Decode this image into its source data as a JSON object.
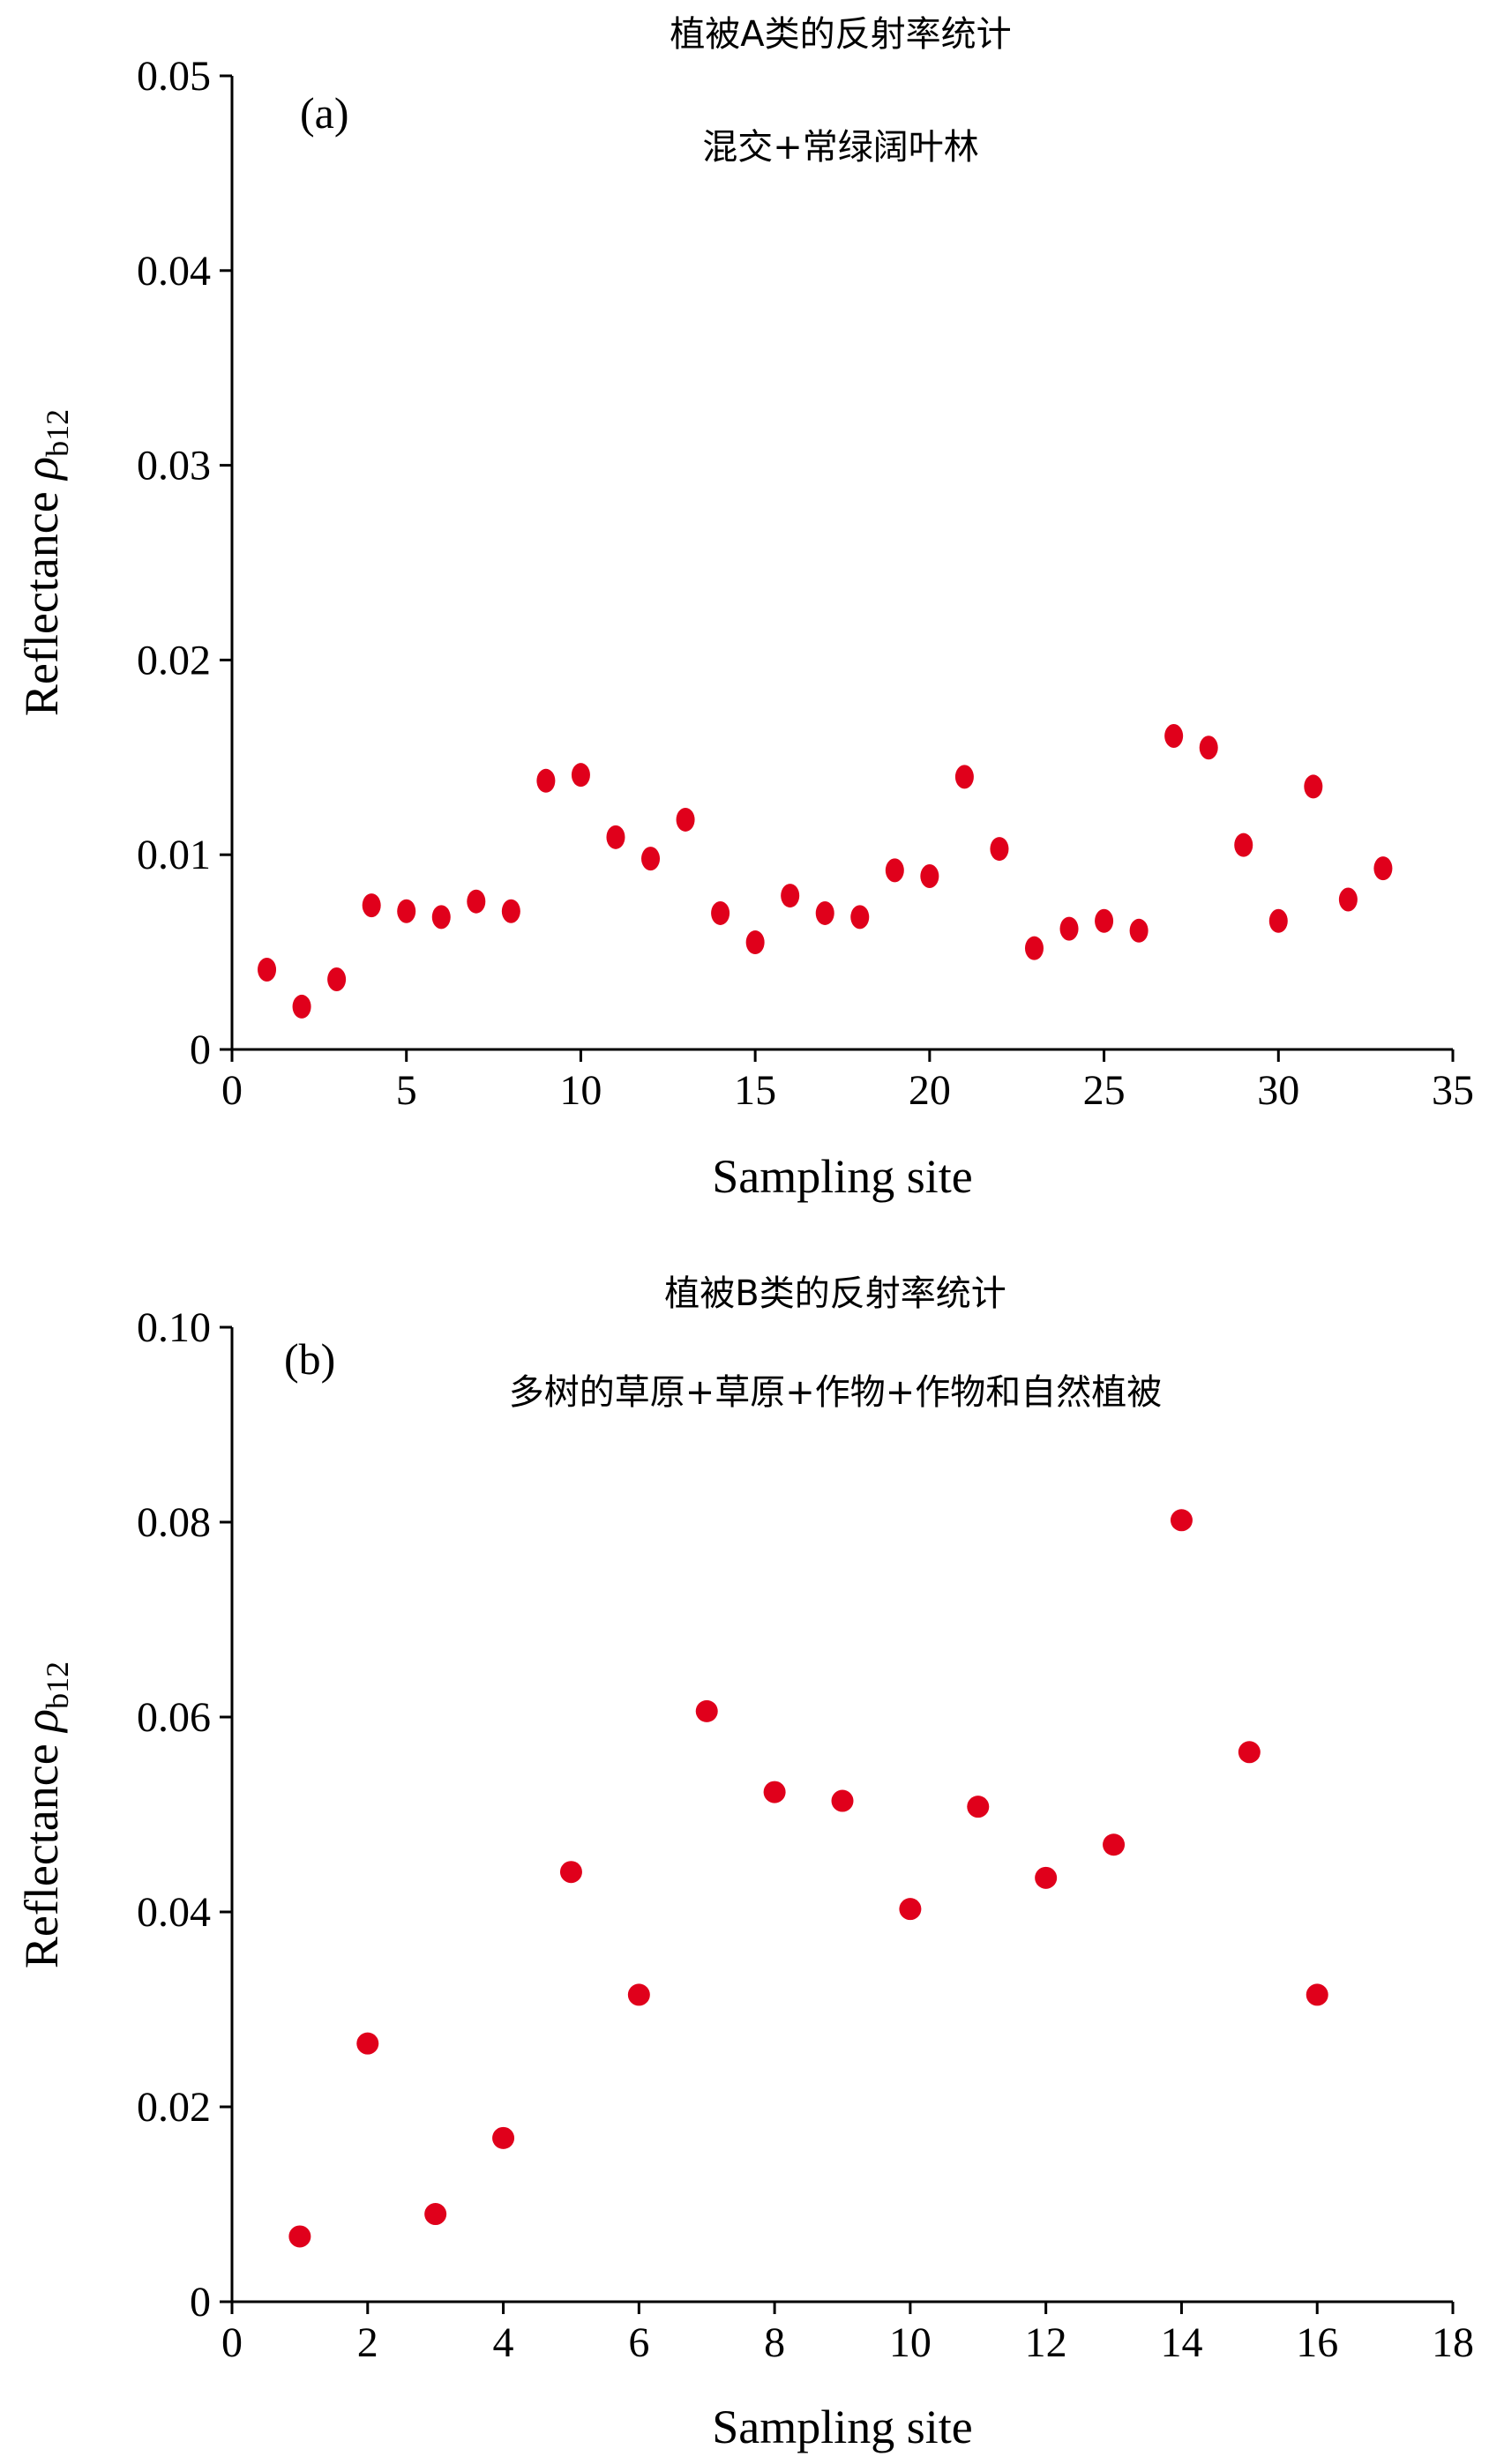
{
  "colors": {
    "point": "#e0001b",
    "axis": "#000000",
    "background": "#ffffff"
  },
  "chart_data": [
    {
      "type": "scatter",
      "panel_label": "(a)",
      "annotations": [
        "植被A类的反射率统计",
        "混交+常绿阔叶林"
      ],
      "xlabel": "Sampling site",
      "ylabel": {
        "main": "Reflectance ",
        "symbol": "ρ",
        "subscript": "b12"
      },
      "xlim": [
        0,
        35
      ],
      "ylim": [
        0,
        0.05
      ],
      "x_ticks": [
        "0",
        "5",
        "10",
        "15",
        "20",
        "25",
        "30",
        "35"
      ],
      "y_ticks": [
        "0",
        "0.01",
        "0.02",
        "0.03",
        "0.04",
        "0.05"
      ],
      "grid": false,
      "legend": "none",
      "series": [
        {
          "x": [
            1,
            2,
            3,
            4,
            5,
            6,
            7,
            8,
            9,
            10,
            11,
            12,
            13,
            14,
            15,
            16,
            17,
            18,
            19,
            20,
            21,
            22,
            23,
            24,
            25,
            26,
            27,
            28,
            29,
            30,
            31,
            32,
            33
          ],
          "y": [
            0.0041,
            0.0022,
            0.0036,
            0.0074,
            0.0071,
            0.0068,
            0.0076,
            0.0071,
            0.0138,
            0.0141,
            0.0109,
            0.0098,
            0.0118,
            0.007,
            0.0055,
            0.0079,
            0.007,
            0.0068,
            0.0092,
            0.0089,
            0.014,
            0.0103,
            0.0052,
            0.0062,
            0.0066,
            0.0061,
            0.0161,
            0.0155,
            0.0105,
            0.0066,
            0.0135,
            0.0077,
            0.0093
          ]
        }
      ]
    },
    {
      "type": "scatter",
      "panel_label": "(b)",
      "annotations": [
        "植被B类的反射率统计",
        "多树的草原+草原+作物+作物和自然植被"
      ],
      "xlabel": "Sampling site",
      "ylabel": {
        "main": "Reflectance ",
        "symbol": "ρ",
        "subscript": "b12"
      },
      "xlim": [
        0,
        18
      ],
      "ylim": [
        0,
        0.1
      ],
      "x_ticks": [
        "0",
        "2",
        "4",
        "6",
        "8",
        "10",
        "12",
        "14",
        "16",
        "18"
      ],
      "y_ticks": [
        "0",
        "0.02",
        "0.04",
        "0.06",
        "0.08",
        "0.10"
      ],
      "grid": false,
      "legend": "none",
      "series": [
        {
          "x": [
            1,
            2,
            3,
            4,
            5,
            6,
            7,
            8,
            9,
            10,
            11,
            12,
            13,
            14,
            15,
            16
          ],
          "y": [
            0.0067,
            0.0265,
            0.009,
            0.0168,
            0.0441,
            0.0315,
            0.0606,
            0.0523,
            0.0514,
            0.0403,
            0.0508,
            0.0435,
            0.0469,
            0.0802,
            0.0564,
            0.0315
          ]
        }
      ]
    }
  ]
}
